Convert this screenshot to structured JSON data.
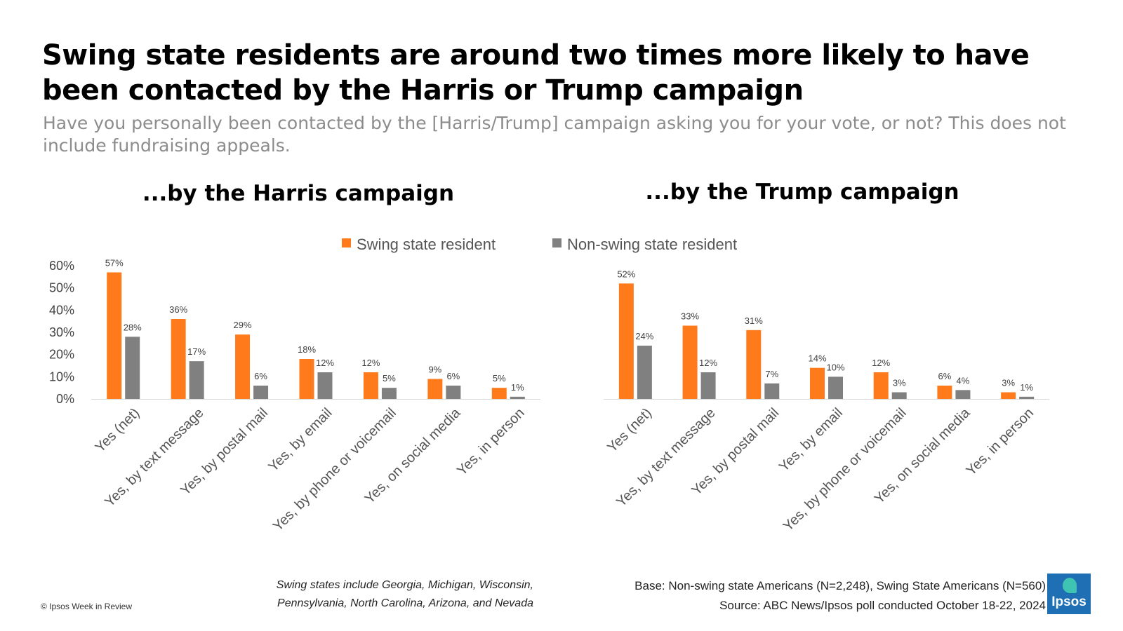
{
  "title": "Swing state residents are around two times more likely to have been contacted by the Harris or Trump campaign",
  "subtitle": "Have you personally been contacted by the [Harris/Trump] campaign asking you for your vote, or not? This does not include fundraising appeals.",
  "legend": [
    {
      "label": "Swing state resident",
      "color": "#ff7a1a"
    },
    {
      "label": "Non-swing state resident",
      "color": "#808080"
    }
  ],
  "footnote_left": [
    "Swing states include Georgia, Michigan, Wisconsin,",
    "Pennsylvania, North Carolina, Arizona, and Nevada"
  ],
  "footnote_right": [
    "Base: Non-swing state Americans (N=2,248), Swing State Americans (N=560)",
    "Source: ABC News/Ipsos poll conducted October 18-22, 2024"
  ],
  "copyright": "© Ipsos Week in Review",
  "logo_text": "Ipsos",
  "chart_data": [
    {
      "type": "bar",
      "title": "...by the Harris campaign",
      "categories": [
        "Yes (net)",
        "Yes, by text message",
        "Yes, by postal mail",
        "Yes, by email",
        "Yes, by phone or voicemail",
        "Yes, on social media",
        "Yes, in person"
      ],
      "series": [
        {
          "name": "Swing state resident",
          "values": [
            57,
            36,
            29,
            18,
            12,
            9,
            5
          ],
          "color": "#ff7a1a"
        },
        {
          "name": "Non-swing state resident",
          "values": [
            28,
            17,
            6,
            12,
            5,
            6,
            1
          ],
          "color": "#808080"
        }
      ],
      "ylim": [
        0,
        60
      ],
      "yticks": [
        "0%",
        "10%",
        "20%",
        "30%",
        "40%",
        "50%",
        "60%"
      ],
      "grid": false
    },
    {
      "type": "bar",
      "title": "...by the Trump campaign",
      "categories": [
        "Yes (net)",
        "Yes, by text message",
        "Yes, by postal mail",
        "Yes, by email",
        "Yes, by phone or voicemail",
        "Yes, on social media",
        "Yes, in person"
      ],
      "series": [
        {
          "name": "Swing state resident",
          "values": [
            52,
            33,
            31,
            14,
            12,
            6,
            3
          ],
          "color": "#ff7a1a"
        },
        {
          "name": "Non-swing state resident",
          "values": [
            24,
            12,
            7,
            10,
            3,
            4,
            1
          ],
          "color": "#808080"
        }
      ],
      "ylim": [
        0,
        60
      ],
      "grid": false
    }
  ]
}
